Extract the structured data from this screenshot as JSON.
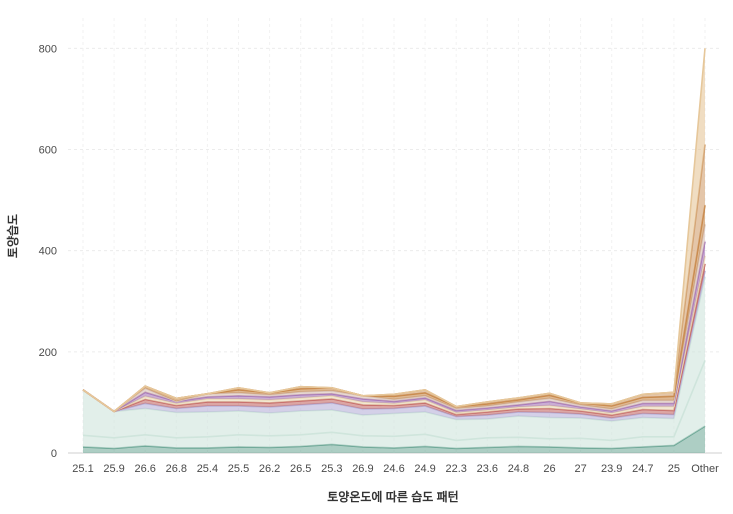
{
  "chart_data": {
    "type": "area",
    "xlabel": "토양온도에 따른 습도 패턴",
    "ylabel": "토양습도",
    "categories": [
      "25.1",
      "25.9",
      "26.6",
      "26.8",
      "25.4",
      "25.5",
      "26.2",
      "26.5",
      "25.3",
      "26.9",
      "24.6",
      "24.9",
      "22.3",
      "23.6",
      "24.8",
      "26",
      "27",
      "23.9",
      "24.7",
      "25",
      "Other"
    ],
    "ylim": [
      0,
      860
    ],
    "yticks": [
      0,
      200,
      400,
      600,
      800
    ],
    "grid": true,
    "stacked": true,
    "series": [
      {
        "color": "#6aa594",
        "values": [
          12,
          9,
          14,
          10,
          10,
          12,
          11,
          13,
          17,
          12,
          10,
          13,
          9,
          11,
          13,
          12,
          10,
          9,
          12,
          15,
          53
        ]
      },
      {
        "color": "#cfe5dc",
        "values": [
          23,
          21,
          22,
          20,
          22,
          24,
          23,
          23,
          24,
          22,
          23,
          24,
          16,
          19,
          18,
          16,
          19,
          16,
          20,
          17,
          130
        ]
      },
      {
        "color": "#cfe5dc",
        "values": [
          90,
          52,
          52,
          50,
          49,
          47,
          45,
          47,
          44,
          41,
          45,
          44,
          41,
          37,
          42,
          42,
          40,
          38,
          38,
          36,
          165
        ]
      },
      {
        "color": "#b8b1d8",
        "values": [
          0,
          0,
          10,
          8,
          12,
          10,
          12,
          12,
          14,
          12,
          10,
          12,
          6,
          8,
          8,
          10,
          8,
          6,
          8,
          8,
          12
        ]
      },
      {
        "color": "#c56a68",
        "values": [
          0,
          0,
          8,
          6,
          8,
          8,
          8,
          8,
          8,
          8,
          6,
          6,
          4,
          6,
          6,
          8,
          6,
          6,
          8,
          8,
          14
        ]
      },
      {
        "color": "#e9d9b6",
        "values": [
          0,
          0,
          6,
          4,
          6,
          6,
          6,
          6,
          6,
          6,
          4,
          6,
          4,
          4,
          4,
          6,
          4,
          4,
          6,
          8,
          16
        ]
      },
      {
        "color": "#a676b8",
        "values": [
          0,
          0,
          8,
          4,
          4,
          6,
          6,
          6,
          4,
          6,
          4,
          4,
          4,
          4,
          4,
          8,
          4,
          4,
          6,
          6,
          28
        ]
      },
      {
        "color": "#d8c2b6",
        "values": [
          0,
          0,
          8,
          0,
          6,
          6,
          4,
          6,
          6,
          6,
          4,
          4,
          4,
          4,
          6,
          6,
          4,
          4,
          6,
          6,
          34
        ]
      },
      {
        "color": "#c8884a",
        "values": [
          0,
          0,
          4,
          6,
          0,
          6,
          4,
          6,
          6,
          0,
          6,
          6,
          4,
          4,
          4,
          6,
          4,
          6,
          6,
          8,
          38
        ]
      },
      {
        "color": "#d2a070",
        "values": [
          0,
          0,
          0,
          0,
          0,
          4,
          0,
          4,
          0,
          0,
          4,
          6,
          0,
          4,
          4,
          4,
          0,
          4,
          6,
          8,
          120
        ]
      },
      {
        "color": "#e6c79a",
        "values": [
          0,
          0,
          0,
          0,
          0,
          0,
          0,
          0,
          0,
          0,
          0,
          0,
          0,
          0,
          0,
          0,
          0,
          0,
          0,
          0,
          190
        ]
      }
    ]
  }
}
